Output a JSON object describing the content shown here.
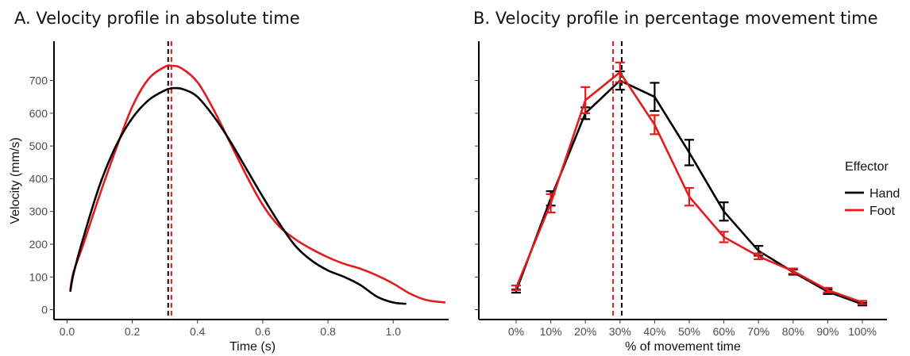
{
  "chart_data": [
    {
      "type": "line",
      "title": "A. Velocity profile in absolute time",
      "xlabel": "Time (s)",
      "ylabel": "Velocity (mm/s)",
      "xlim": [
        -0.04,
        1.17
      ],
      "ylim": [
        -30,
        820
      ],
      "xticks": [
        0.0,
        0.2,
        0.4,
        0.6,
        0.8,
        1.0
      ],
      "xtick_labels": [
        "0.0",
        "0.2",
        "0.4",
        "0.6",
        "0.8",
        "1.0"
      ],
      "yticks": [
        0,
        100,
        200,
        300,
        400,
        500,
        600,
        700
      ],
      "ytick_labels": [
        "0",
        "100",
        "200",
        "300",
        "400",
        "500",
        "600",
        "700"
      ],
      "grid": false,
      "series": [
        {
          "name": "Hand",
          "color": "#000000",
          "x": [
            0.01,
            0.02,
            0.05,
            0.1,
            0.15,
            0.2,
            0.25,
            0.3,
            0.33,
            0.36,
            0.4,
            0.45,
            0.5,
            0.55,
            0.6,
            0.65,
            0.7,
            0.75,
            0.8,
            0.85,
            0.9,
            0.95,
            1.0,
            1.04
          ],
          "y": [
            55,
            110,
            220,
            380,
            500,
            585,
            640,
            670,
            677,
            672,
            650,
            590,
            515,
            430,
            345,
            265,
            195,
            150,
            120,
            100,
            75,
            40,
            22,
            18
          ]
        },
        {
          "name": "Foot",
          "color": "#e41a1c",
          "x": [
            0.01,
            0.02,
            0.05,
            0.1,
            0.15,
            0.2,
            0.25,
            0.3,
            0.32,
            0.35,
            0.4,
            0.45,
            0.5,
            0.55,
            0.6,
            0.65,
            0.7,
            0.75,
            0.8,
            0.85,
            0.9,
            0.95,
            1.0,
            1.05,
            1.1,
            1.16
          ],
          "y": [
            60,
            115,
            200,
            350,
            490,
            620,
            705,
            742,
            745,
            738,
            695,
            610,
            510,
            410,
            320,
            255,
            215,
            185,
            160,
            140,
            125,
            105,
            80,
            50,
            30,
            22
          ]
        }
      ],
      "vlines": [
        {
          "x": 0.31,
          "color": "#000000",
          "style": "dashed"
        },
        {
          "x": 0.32,
          "color": "#e41a1c",
          "style": "dashed"
        }
      ]
    },
    {
      "type": "line",
      "title": "B. Velocity profile in percentage movement time",
      "xlabel": "% of movement time",
      "ylabel": "",
      "categories": [
        "0%",
        "10%",
        "20%",
        "30%",
        "40%",
        "50%",
        "60%",
        "70%",
        "80%",
        "90%",
        "100%"
      ],
      "ylim": [
        -30,
        820
      ],
      "grid": false,
      "legend": {
        "title": "Effector",
        "position": "right",
        "items": [
          "Hand",
          "Foot"
        ]
      },
      "series": [
        {
          "name": "Hand",
          "color": "#000000",
          "values": [
            57,
            340,
            600,
            700,
            650,
            480,
            300,
            180,
            115,
            55,
            17
          ],
          "err_low": [
            52,
            318,
            582,
            672,
            607,
            441,
            272,
            165,
            107,
            48,
            13
          ],
          "err_high": [
            62,
            362,
            618,
            728,
            693,
            519,
            328,
            195,
            123,
            62,
            21
          ]
        },
        {
          "name": "Foot",
          "color": "#e41a1c",
          "values": [
            67,
            325,
            640,
            725,
            565,
            345,
            222,
            163,
            118,
            60,
            22
          ],
          "err_low": [
            60,
            297,
            600,
            695,
            536,
            318,
            206,
            154,
            110,
            53,
            17
          ],
          "err_high": [
            74,
            353,
            680,
            755,
            594,
            372,
            238,
            172,
            126,
            67,
            27
          ]
        }
      ],
      "vlines": [
        {
          "x": 2.8,
          "color": "#e41a1c",
          "style": "dashed"
        },
        {
          "x": 3.05,
          "color": "#000000",
          "style": "dashed"
        }
      ]
    }
  ]
}
